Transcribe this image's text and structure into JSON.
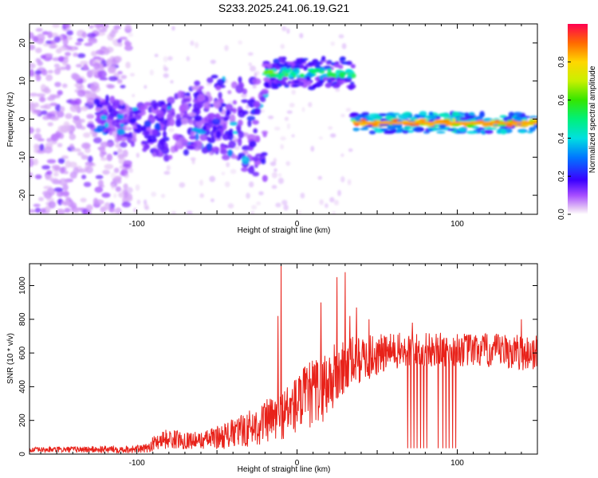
{
  "title": "S233.2025.241.06.19.G21",
  "chart_data": [
    {
      "type": "heatmap",
      "name": "spectrogram",
      "xlabel": "Height of straight line (km)",
      "ylabel": "Frequency (Hz)",
      "xlim": [
        -167,
        150
      ],
      "ylim": [
        -25,
        25
      ],
      "xticks": [
        -100,
        0,
        100
      ],
      "yticks": [
        -20,
        -10,
        0,
        10,
        20
      ],
      "colorbar": {
        "label": "Normalized spectral amplitude",
        "range": [
          0,
          1
        ],
        "ticks": [
          0.0,
          0.2,
          0.4,
          0.6,
          0.8
        ]
      },
      "features": [
        {
          "name": "noise cloud",
          "x_range": [
            -167,
            -115
          ],
          "freq_range": [
            -25,
            25
          ],
          "amplitude": 0.05
        },
        {
          "name": "scattered band",
          "x_range": [
            -125,
            -20
          ],
          "freq_center_start": -2,
          "freq_center_end": 2,
          "amplitude": 0.2
        },
        {
          "name": "upper band",
          "x_range": [
            -20,
            35
          ],
          "freq": 12,
          "amplitude": 0.5
        },
        {
          "name": "main line",
          "x_range": [
            35,
            150
          ],
          "freq": -1,
          "amplitude": 0.9
        }
      ]
    },
    {
      "type": "line",
      "name": "snr",
      "xlabel": "Height of straight line (km)",
      "ylabel": "SNR (10 * v/v)",
      "xlim": [
        -167,
        150
      ],
      "ylim": [
        0,
        1130
      ],
      "xticks": [
        -100,
        0,
        100
      ],
      "yticks": [
        0,
        200,
        400,
        600,
        800,
        1000
      ],
      "color": "#e8221a",
      "profile": [
        {
          "x": -167,
          "level": 25,
          "spread": 15
        },
        {
          "x": -95,
          "level": 30,
          "spread": 25
        },
        {
          "x": -85,
          "level": 90,
          "spread": 60
        },
        {
          "x": -60,
          "level": 80,
          "spread": 50
        },
        {
          "x": -40,
          "level": 120,
          "spread": 90
        },
        {
          "x": -25,
          "level": 170,
          "spread": 120
        },
        {
          "x": -10,
          "level": 230,
          "spread": 150
        },
        {
          "x": 5,
          "level": 330,
          "spread": 200
        },
        {
          "x": 20,
          "level": 430,
          "spread": 220
        },
        {
          "x": 35,
          "level": 550,
          "spread": 150
        },
        {
          "x": 60,
          "level": 610,
          "spread": 110
        },
        {
          "x": 100,
          "level": 620,
          "spread": 100
        },
        {
          "x": 150,
          "level": 600,
          "spread": 110
        }
      ],
      "spikes": [
        {
          "x": -10,
          "y": 1130
        },
        {
          "x": -12,
          "y": 820
        },
        {
          "x": 15,
          "y": 900
        },
        {
          "x": 25,
          "y": 1050
        },
        {
          "x": 30,
          "y": 1080
        },
        {
          "x": 33,
          "y": 820
        },
        {
          "x": 37,
          "y": 870
        },
        {
          "x": 45,
          "y": 800
        },
        {
          "x": 72,
          "y": 780
        },
        {
          "x": 140,
          "y": 800
        }
      ],
      "dropouts": [
        69,
        71,
        73,
        75,
        77,
        79,
        81,
        88,
        91,
        93,
        95,
        97,
        99
      ]
    }
  ]
}
